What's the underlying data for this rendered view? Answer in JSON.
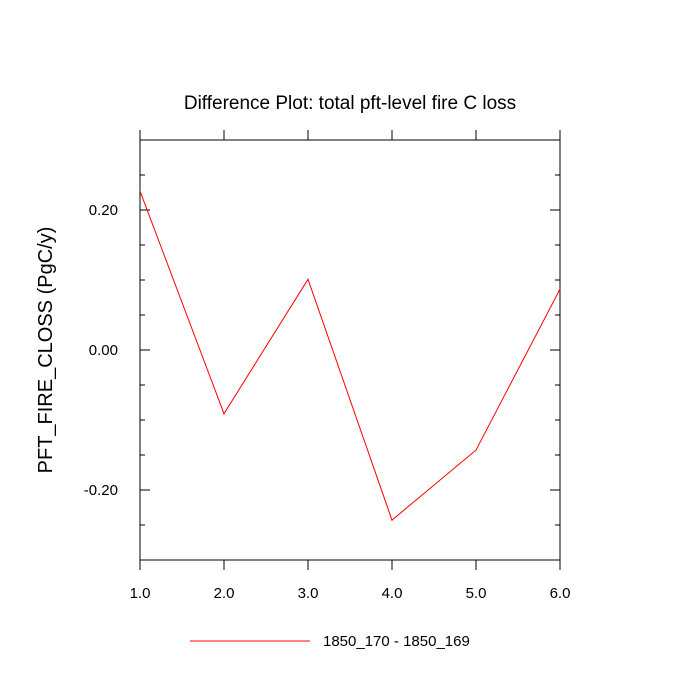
{
  "chart_data": {
    "type": "line",
    "title": "Difference Plot: total pft-level fire C loss",
    "xlabel": "",
    "ylabel": "PFT_FIRE_CLOSS  (PgC/y)",
    "xlim": [
      1.0,
      6.0
    ],
    "ylim": [
      -0.3,
      0.3
    ],
    "x_ticks": [
      1.0,
      2.0,
      3.0,
      4.0,
      5.0,
      6.0
    ],
    "x_tick_labels": [
      "1.0",
      "2.0",
      "3.0",
      "4.0",
      "5.0",
      "6.0"
    ],
    "y_ticks": [
      -0.2,
      0.0,
      0.2
    ],
    "y_tick_labels": [
      "-0.20",
      "0.00",
      "0.20"
    ],
    "grid": false,
    "legend_position": "bottom-center",
    "series": [
      {
        "name": "1850_170 - 1850_169",
        "color": "#ff0000",
        "x": [
          1.0,
          2.0,
          3.0,
          4.0,
          5.0,
          6.0
        ],
        "values": [
          0.227,
          -0.091,
          0.101,
          -0.243,
          -0.143,
          0.087
        ]
      }
    ]
  }
}
